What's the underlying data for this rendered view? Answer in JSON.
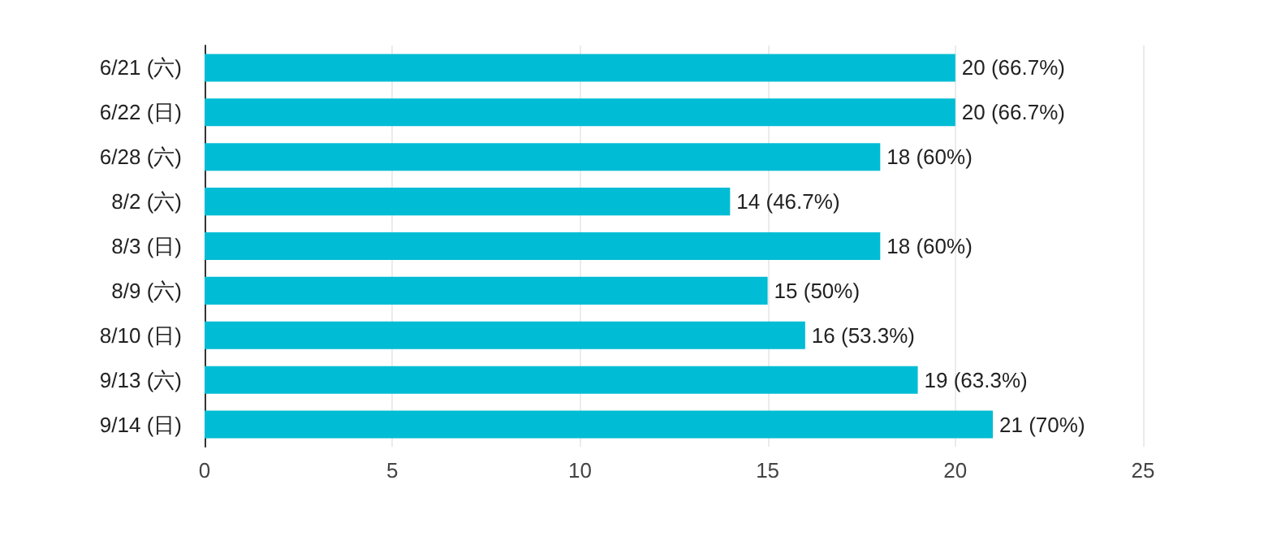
{
  "chart_data": {
    "type": "bar",
    "orientation": "horizontal",
    "categories": [
      "6/21 (六)",
      "6/22 (日)",
      "6/28 (六)",
      "8/2 (六)",
      "8/3 (日)",
      "8/9 (六)",
      "8/10 (日)",
      "9/13 (六)",
      "9/14 (日)"
    ],
    "values": [
      20,
      20,
      18,
      14,
      18,
      15,
      16,
      19,
      21
    ],
    "value_labels": [
      "20 (66.7%)",
      "20 (66.7%)",
      "18 (60%)",
      "14 (46.7%)",
      "18 (60%)",
      "15 (50%)",
      "16 (53.3%)",
      "19 (63.3%)",
      "21 (70%)"
    ],
    "color": "#00bcd4",
    "xlim": [
      0,
      25
    ],
    "xticks": [
      0,
      5,
      10,
      15,
      20,
      25
    ],
    "grid": "x"
  }
}
